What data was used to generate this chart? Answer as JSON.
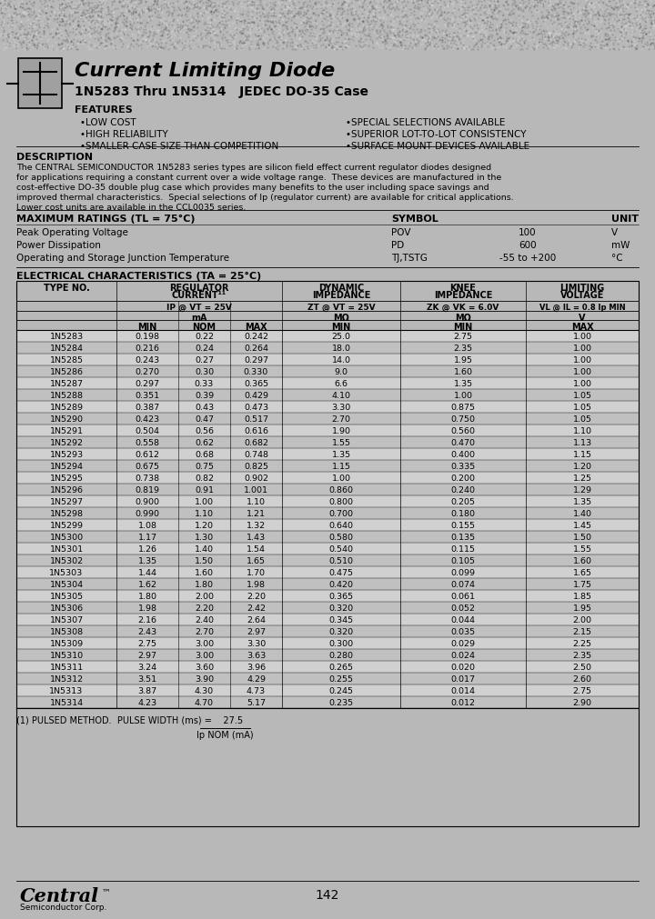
{
  "bg_color": "#b8b8b8",
  "title1": "Current Limiting Diode",
  "title2": "1N5283 Thru 1N5314   JEDEC DO-35 Case",
  "features_left": [
    "•LOW COST",
    "•HIGH RELIABILITY",
    "•SMALLER CASE SIZE THAN COMPETITION"
  ],
  "features_right": [
    "•SPECIAL SELECTIONS AVAILABLE",
    "•SUPERIOR LOT-TO-LOT CONSISTENCY",
    "•SURFACE MOUNT DEVICES AVAILABLE"
  ],
  "desc_title": "DESCRIPTION",
  "desc_lines": [
    "The CENTRAL SEMICONDUCTOR 1N5283 series types are silicon field effect current regulator diodes designed",
    "for applications requiring a constant current over a wide voltage range.  These devices are manufactured in the",
    "cost-effective DO-35 double plug case which provides many benefits to the user including space savings and",
    "improved thermal characteristics.  Special selections of Ip (regulator current) are available for critical applications.",
    "Lower cost units are available in the CCL0035 series."
  ],
  "max_title": "MAXIMUM RATINGS (TL = 75°C)",
  "max_rows": [
    [
      "Peak Operating Voltage",
      "POV",
      "100",
      "V"
    ],
    [
      "Power Dissipation",
      "PD",
      "600",
      "mW"
    ],
    [
      "Operating and Storage Junction Temperature",
      "TJ,TSTG",
      "-55 to +200",
      "°C"
    ]
  ],
  "elec_title": "ELECTRICAL CHARACTERISTICS (TA = 25°C)",
  "table_data": [
    [
      "1N5283",
      "0.198",
      "0.22",
      "0.242",
      "25.0",
      "2.75",
      "1.00"
    ],
    [
      "1N5284",
      "0.216",
      "0.24",
      "0.264",
      "18.0",
      "2.35",
      "1.00"
    ],
    [
      "1N5285",
      "0.243",
      "0.27",
      "0.297",
      "14.0",
      "1.95",
      "1.00"
    ],
    [
      "1N5286",
      "0.270",
      "0.30",
      "0.330",
      "9.0",
      "1.60",
      "1.00"
    ],
    [
      "1N5287",
      "0.297",
      "0.33",
      "0.365",
      "6.6",
      "1.35",
      "1.00"
    ],
    [
      "1N5288",
      "0.351",
      "0.39",
      "0.429",
      "4.10",
      "1.00",
      "1.05"
    ],
    [
      "1N5289",
      "0.387",
      "0.43",
      "0.473",
      "3.30",
      "0.875",
      "1.05"
    ],
    [
      "1N5290",
      "0.423",
      "0.47",
      "0.517",
      "2.70",
      "0.750",
      "1.05"
    ],
    [
      "1N5291",
      "0.504",
      "0.56",
      "0.616",
      "1.90",
      "0.560",
      "1.10"
    ],
    [
      "1N5292",
      "0.558",
      "0.62",
      "0.682",
      "1.55",
      "0.470",
      "1.13"
    ],
    [
      "1N5293",
      "0.612",
      "0.68",
      "0.748",
      "1.35",
      "0.400",
      "1.15"
    ],
    [
      "1N5294",
      "0.675",
      "0.75",
      "0.825",
      "1.15",
      "0.335",
      "1.20"
    ],
    [
      "1N5295",
      "0.738",
      "0.82",
      "0.902",
      "1.00",
      "0.200",
      "1.25"
    ],
    [
      "1N5296",
      "0.819",
      "0.91",
      "1.001",
      "0.860",
      "0.240",
      "1.29"
    ],
    [
      "1N5297",
      "0.900",
      "1.00",
      "1.10",
      "0.800",
      "0.205",
      "1.35"
    ],
    [
      "1N5298",
      "0.990",
      "1.10",
      "1.21",
      "0.700",
      "0.180",
      "1.40"
    ],
    [
      "1N5299",
      "1.08",
      "1.20",
      "1.32",
      "0.640",
      "0.155",
      "1.45"
    ],
    [
      "1N5300",
      "1.17",
      "1.30",
      "1.43",
      "0.580",
      "0.135",
      "1.50"
    ],
    [
      "1N5301",
      "1.26",
      "1.40",
      "1.54",
      "0.540",
      "0.115",
      "1.55"
    ],
    [
      "1N5302",
      "1.35",
      "1.50",
      "1.65",
      "0.510",
      "0.105",
      "1.60"
    ],
    [
      "1N5303",
      "1.44",
      "1.60",
      "1.70",
      "0.475",
      "0.099",
      "1.65"
    ],
    [
      "1N5304",
      "1.62",
      "1.80",
      "1.98",
      "0.420",
      "0.074",
      "1.75"
    ],
    [
      "1N5305",
      "1.80",
      "2.00",
      "2.20",
      "0.365",
      "0.061",
      "1.85"
    ],
    [
      "1N5306",
      "1.98",
      "2.20",
      "2.42",
      "0.320",
      "0.052",
      "1.95"
    ],
    [
      "1N5307",
      "2.16",
      "2.40",
      "2.64",
      "0.345",
      "0.044",
      "2.00"
    ],
    [
      "1N5308",
      "2.43",
      "2.70",
      "2.97",
      "0.320",
      "0.035",
      "2.15"
    ],
    [
      "1N5309",
      "2.75",
      "3.00",
      "3.30",
      "0.300",
      "0.029",
      "2.25"
    ],
    [
      "1N5310",
      "2.97",
      "3.00",
      "3.63",
      "0.280",
      "0.024",
      "2.35"
    ],
    [
      "1N5311",
      "3.24",
      "3.60",
      "3.96",
      "0.265",
      "0.020",
      "2.50"
    ],
    [
      "1N5312",
      "3.51",
      "3.90",
      "4.29",
      "0.255",
      "0.017",
      "2.60"
    ],
    [
      "1N5313",
      "3.87",
      "4.30",
      "4.73",
      "0.245",
      "0.014",
      "2.75"
    ],
    [
      "1N5314",
      "4.23",
      "4.70",
      "5.17",
      "0.235",
      "0.012",
      "2.90"
    ]
  ],
  "footnote1": "(1) PULSED METHOD.  PULSE WIDTH (ms) =    27.5",
  "footnote2": "Ip NOM (mA)",
  "page_num": "142"
}
